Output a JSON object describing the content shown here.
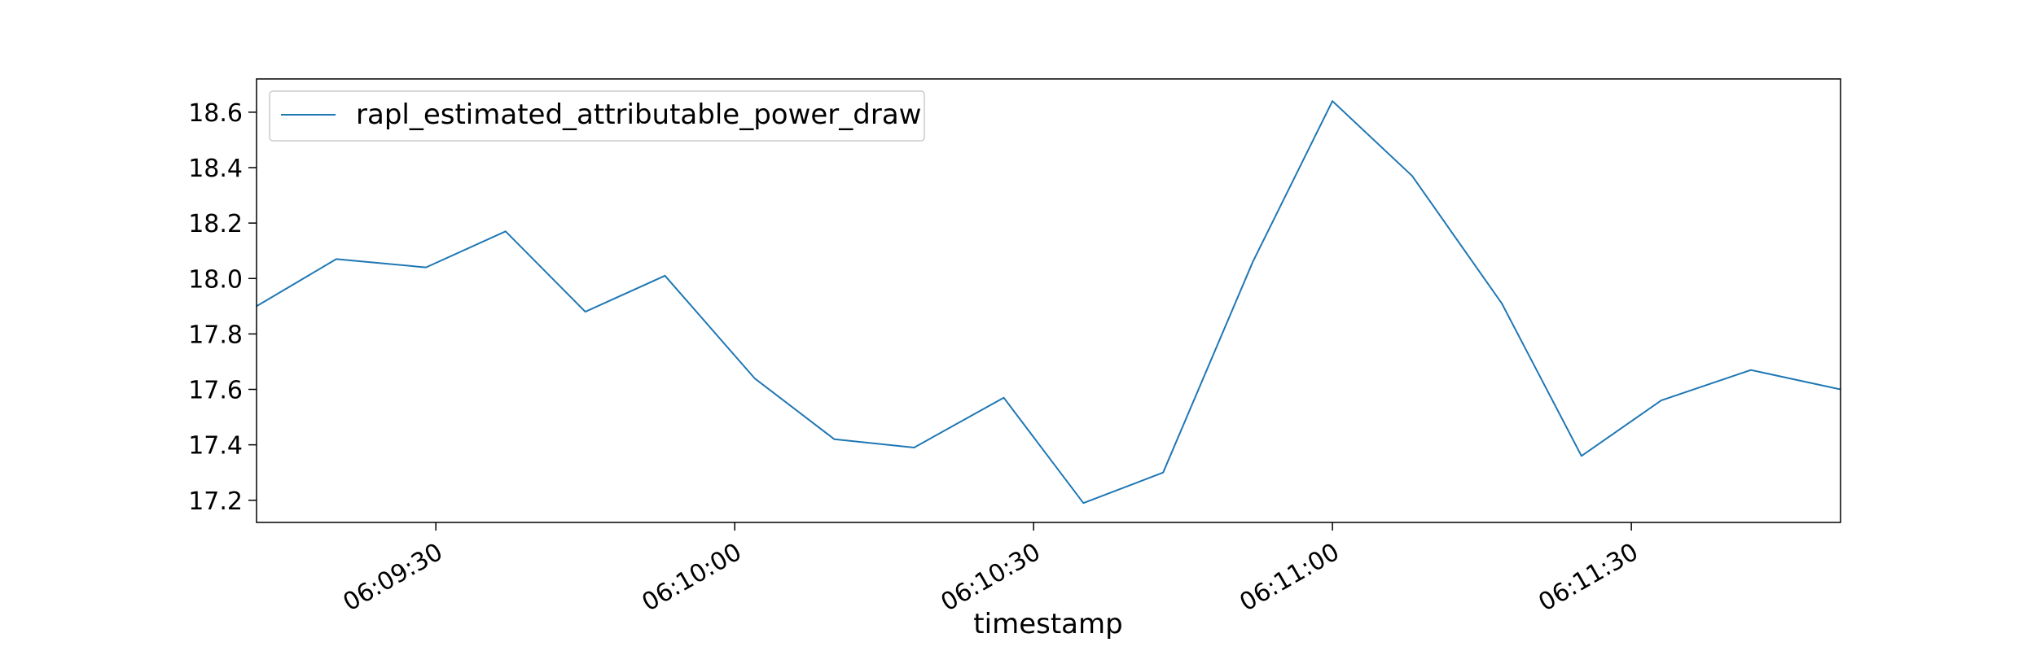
{
  "chart_data": {
    "type": "line",
    "xlabel": "timestamp",
    "ylabel": "",
    "title": "",
    "legend": {
      "placement": "top-left"
    },
    "grid": false,
    "xlim": [
      "06:09:12",
      "06:11:51"
    ],
    "ylim": [
      17.12,
      18.72
    ],
    "x_ticks": [
      "06:09:30",
      "06:10:00",
      "06:10:30",
      "06:11:00",
      "06:11:30"
    ],
    "y_ticks": [
      "17.2",
      "17.4",
      "17.6",
      "17.8",
      "18.0",
      "18.2",
      "18.4",
      "18.6"
    ],
    "x": [
      "06:09:12",
      "06:09:20",
      "06:09:29",
      "06:09:37",
      "06:09:45",
      "06:09:53",
      "06:10:02",
      "06:10:10",
      "06:10:18",
      "06:10:27",
      "06:10:35",
      "06:10:43",
      "06:10:52",
      "06:11:00",
      "06:11:08",
      "06:11:17",
      "06:11:25",
      "06:11:33",
      "06:11:42",
      "06:11:51"
    ],
    "series": [
      {
        "name": "rapl_estimated_attributable_power_draw",
        "color": "#1f77b4",
        "values": [
          17.9,
          18.07,
          18.04,
          18.17,
          17.88,
          18.01,
          17.64,
          17.42,
          17.39,
          17.57,
          17.19,
          17.3,
          18.06,
          18.64,
          18.37,
          17.91,
          17.36,
          17.56,
          17.67,
          17.6
        ]
      }
    ]
  }
}
